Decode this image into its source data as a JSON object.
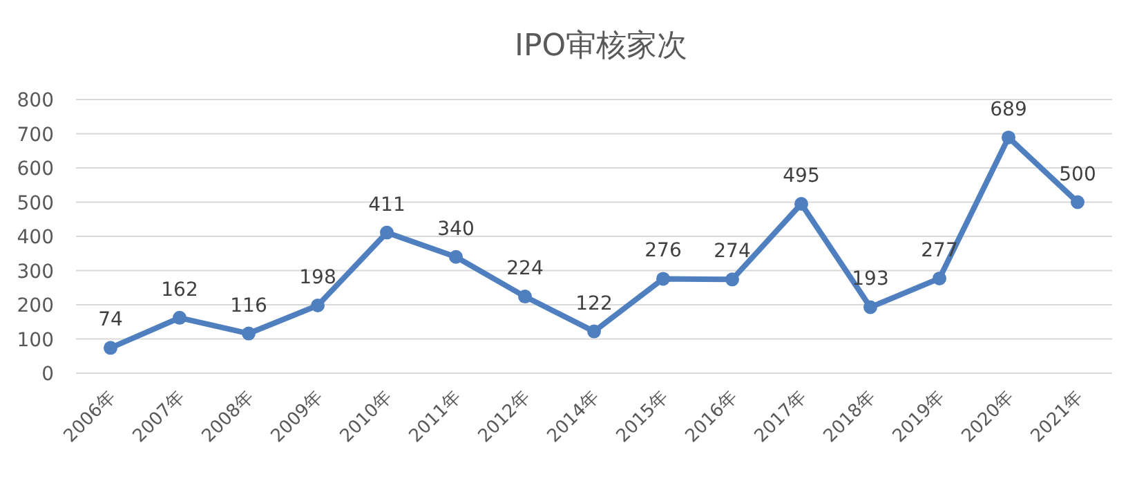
{
  "chart_data": {
    "type": "line",
    "title": "IPO审核家次",
    "categories": [
      "2006年",
      "2007年",
      "2008年",
      "2009年",
      "2010年",
      "2011年",
      "2012年",
      "2014年",
      "2015年",
      "2016年",
      "2017年",
      "2018年",
      "2019年",
      "2020年",
      "2021年"
    ],
    "values": [
      74,
      162,
      116,
      198,
      411,
      340,
      224,
      122,
      276,
      274,
      495,
      193,
      277,
      689,
      500
    ],
    "color": "#4f7fbf",
    "ylim": [
      0,
      800
    ],
    "yticks": [
      0,
      100,
      200,
      300,
      400,
      500,
      600,
      700,
      800
    ],
    "grid": "y",
    "marker": "circle",
    "line_style": "solid",
    "data_labels": true
  }
}
